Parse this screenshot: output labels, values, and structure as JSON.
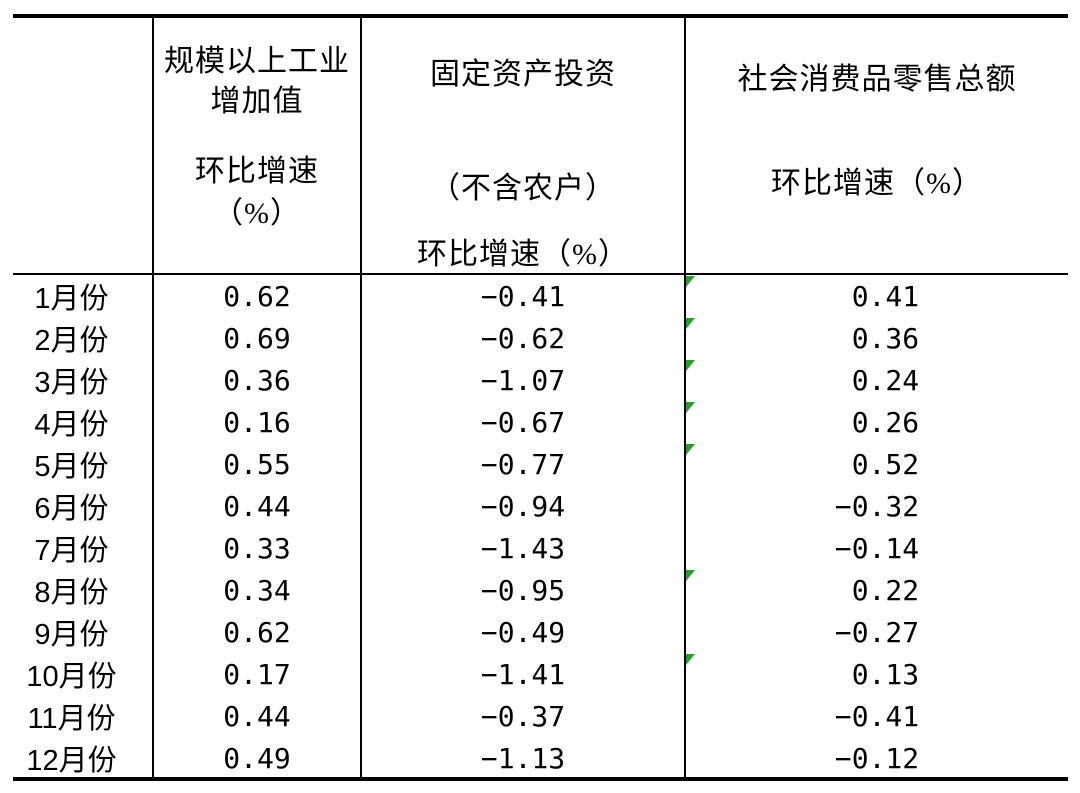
{
  "table": {
    "border_color": "#000000",
    "text_color": "#000000",
    "flag_color": "#2e9b2e",
    "columns": [
      {
        "id": "month",
        "header_lines": []
      },
      {
        "id": "industrial",
        "header_lines": [
          "规模以上工业",
          "增加值",
          "环比增速",
          "（%）"
        ]
      },
      {
        "id": "investment",
        "header_lines": [
          "固定资产投资",
          "（不含农户）",
          "环比增速（%）"
        ]
      },
      {
        "id": "retail",
        "header_lines": [
          "社会消费品零售总额",
          "环比增速（%）"
        ]
      }
    ],
    "rows": [
      {
        "month": "1月份",
        "industrial": "0.62",
        "investment": "−0.41",
        "retail": "0.41"
      },
      {
        "month": "2月份",
        "industrial": "0.69",
        "investment": "−0.62",
        "retail": "0.36"
      },
      {
        "month": "3月份",
        "industrial": "0.36",
        "investment": "−1.07",
        "retail": "0.24"
      },
      {
        "month": "4月份",
        "industrial": "0.16",
        "investment": "−0.67",
        "retail": "0.26"
      },
      {
        "month": "5月份",
        "industrial": "0.55",
        "investment": "−0.77",
        "retail": "0.52"
      },
      {
        "month": "6月份",
        "industrial": "0.44",
        "investment": "−0.94",
        "retail": "−0.32"
      },
      {
        "month": "7月份",
        "industrial": "0.33",
        "investment": "−1.43",
        "retail": "−0.14"
      },
      {
        "month": "8月份",
        "industrial": "0.34",
        "investment": "−0.95",
        "retail": "0.22"
      },
      {
        "month": "9月份",
        "industrial": "0.62",
        "investment": "−0.49",
        "retail": "−0.27"
      },
      {
        "month": "10月份",
        "industrial": "0.17",
        "investment": "−1.41",
        "retail": "0.13"
      },
      {
        "month": "11月份",
        "industrial": "0.44",
        "investment": "−0.37",
        "retail": "−0.41"
      },
      {
        "month": "12月份",
        "industrial": "0.49",
        "investment": "−1.13",
        "retail": "−0.12"
      }
    ],
    "flagged_rows": [
      1,
      2,
      3,
      4,
      5,
      8,
      10
    ]
  },
  "chart_data": {
    "type": "table",
    "columns": [
      "月份",
      "规模以上工业增加值环比增速（%）",
      "固定资产投资（不含农户）环比增速（%）",
      "社会消费品零售总额环比增速（%）"
    ],
    "categories": [
      "1月份",
      "2月份",
      "3月份",
      "4月份",
      "5月份",
      "6月份",
      "7月份",
      "8月份",
      "9月份",
      "10月份",
      "11月份",
      "12月份"
    ],
    "series": [
      {
        "name": "规模以上工业增加值环比增速（%）",
        "values": [
          0.62,
          0.69,
          0.36,
          0.16,
          0.55,
          0.44,
          0.33,
          0.34,
          0.62,
          0.17,
          0.44,
          0.49
        ]
      },
      {
        "name": "固定资产投资（不含农户）环比增速（%）",
        "values": [
          -0.41,
          -0.62,
          -1.07,
          -0.67,
          -0.77,
          -0.94,
          -1.43,
          -0.95,
          -0.49,
          -1.41,
          -0.37,
          -1.13
        ]
      },
      {
        "name": "社会消费品零售总额环比增速（%）",
        "values": [
          0.41,
          0.36,
          0.24,
          0.26,
          0.52,
          -0.32,
          -0.14,
          0.22,
          -0.27,
          0.13,
          -0.41,
          -0.12
        ]
      }
    ]
  }
}
